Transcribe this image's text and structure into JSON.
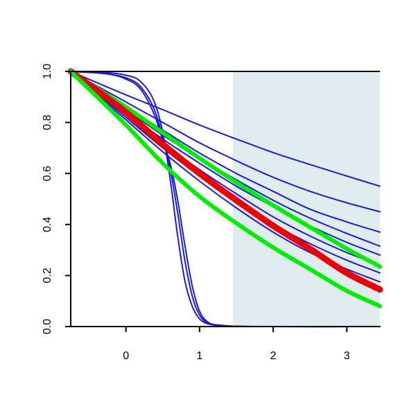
{
  "chart_data": {
    "type": "line",
    "title": "",
    "xlabel": "",
    "ylabel": "",
    "xlim": [
      -0.75,
      3.45
    ],
    "ylim": [
      0,
      1
    ],
    "x_ticks": [
      0,
      1,
      2,
      3
    ],
    "x_tick_labels": [
      "0",
      "1",
      "2",
      "3"
    ],
    "y_ticks": [
      0,
      0.2,
      0.4,
      0.6,
      0.8,
      1
    ],
    "y_tick_labels": [
      "0.0",
      "0.2",
      "0.4",
      "0.6",
      "0.8",
      "1.0"
    ],
    "grid": false,
    "legend": "none",
    "shaded_region": {
      "x_from": 1.45,
      "x_to": 3.45,
      "color": "#e0eced"
    },
    "colors": {
      "blue": "#1a1ad8",
      "green": "#00ee00",
      "red": "#ee0000"
    },
    "series": [
      {
        "color": "#1a1ad8",
        "width": 2,
        "x": [
          -0.75,
          0.0,
          0.5,
          1.0,
          1.5,
          2.0,
          2.5,
          3.0,
          3.45
        ],
        "y": [
          1.0,
          0.908,
          0.85,
          0.79,
          0.735,
          0.682,
          0.635,
          0.59,
          0.55
        ]
      },
      {
        "color": "#1a1ad8",
        "width": 2,
        "x": [
          -0.75,
          0.0,
          0.5,
          1.0,
          1.5,
          2.0,
          2.5,
          3.0,
          3.45
        ],
        "y": [
          1.0,
          0.88,
          0.8,
          0.72,
          0.65,
          0.585,
          0.53,
          0.485,
          0.45
        ]
      },
      {
        "color": "#1a1ad8",
        "width": 2,
        "x": [
          -0.75,
          0.0,
          0.5,
          1.0,
          1.5,
          2.0,
          2.5,
          3.0,
          3.45
        ],
        "y": [
          1.0,
          0.86,
          0.77,
          0.68,
          0.6,
          0.53,
          0.46,
          0.41,
          0.37
        ]
      },
      {
        "color": "#1a1ad8",
        "width": 2,
        "x": [
          -0.75,
          0.0,
          0.5,
          1.0,
          1.5,
          2.0,
          2.5,
          3.0,
          3.45
        ],
        "y": [
          1.0,
          0.85,
          0.75,
          0.66,
          0.575,
          0.495,
          0.425,
          0.365,
          0.315
        ]
      },
      {
        "color": "#1a1ad8",
        "width": 2,
        "x": [
          -0.75,
          0.0,
          0.5,
          1.0,
          1.5,
          2.0,
          2.5,
          3.0,
          3.45
        ],
        "y": [
          1.0,
          0.84,
          0.735,
          0.64,
          0.55,
          0.47,
          0.395,
          0.33,
          0.28
        ]
      },
      {
        "color": "#1a1ad8",
        "width": 2,
        "x": [
          -0.75,
          0.0,
          0.5,
          1.0,
          1.5,
          2.0,
          2.5,
          3.0,
          3.45
        ],
        "y": [
          1.0,
          0.83,
          0.72,
          0.615,
          0.52,
          0.43,
          0.355,
          0.29,
          0.24
        ]
      },
      {
        "color": "#1a1ad8",
        "width": 2,
        "x": [
          -0.75,
          0.0,
          0.5,
          1.0,
          1.5,
          2.0,
          2.5,
          3.0,
          3.45
        ],
        "y": [
          1.0,
          0.82,
          0.7,
          0.59,
          0.49,
          0.4,
          0.325,
          0.26,
          0.21
        ]
      },
      {
        "color": "#1a1ad8",
        "width": 2,
        "x": [
          -0.75,
          0.0,
          0.5,
          1.0,
          1.5,
          2.0,
          2.5,
          3.0,
          3.45
        ],
        "y": [
          1.0,
          0.81,
          0.685,
          0.57,
          0.465,
          0.37,
          0.29,
          0.225,
          0.175
        ]
      },
      {
        "color": "#1a1ad8",
        "width": 2,
        "x": [
          -0.75,
          -0.25,
          0.0,
          0.2,
          0.4,
          0.5,
          0.6,
          0.7,
          0.8,
          0.9,
          1.0,
          1.1,
          1.3,
          1.5,
          2.0,
          3.45
        ],
        "y": [
          1.0,
          0.995,
          0.985,
          0.96,
          0.87,
          0.76,
          0.58,
          0.36,
          0.18,
          0.08,
          0.03,
          0.012,
          0.003,
          0.001,
          0.0,
          0.0
        ]
      },
      {
        "color": "#1a1ad8",
        "width": 2,
        "x": [
          -0.75,
          -0.25,
          0.0,
          0.2,
          0.4,
          0.5,
          0.6,
          0.7,
          0.8,
          0.9,
          1.0,
          1.1,
          1.3,
          1.5,
          2.0,
          3.45
        ],
        "y": [
          1.0,
          0.99,
          0.975,
          0.94,
          0.84,
          0.74,
          0.62,
          0.45,
          0.26,
          0.12,
          0.045,
          0.016,
          0.004,
          0.001,
          0.0,
          0.0
        ]
      },
      {
        "color": "#1a1ad8",
        "width": 2,
        "x": [
          -0.75,
          -0.25,
          0.0,
          0.2,
          0.4,
          0.5,
          0.6,
          0.7,
          0.8,
          0.9,
          1.0,
          1.1,
          1.3,
          1.5,
          2.0,
          3.45
        ],
        "y": [
          1.0,
          0.99,
          0.97,
          0.93,
          0.82,
          0.73,
          0.64,
          0.5,
          0.32,
          0.16,
          0.06,
          0.02,
          0.005,
          0.001,
          0.0,
          0.0
        ]
      },
      {
        "color": "#00ee00",
        "width": 6,
        "x": [
          -0.75,
          0.0,
          0.5,
          1.0,
          1.5,
          2.0,
          2.5,
          3.0,
          3.45
        ],
        "y": [
          1.0,
          0.86,
          0.76,
          0.66,
          0.565,
          0.475,
          0.39,
          0.305,
          0.235
        ]
      },
      {
        "color": "#ee0000",
        "width": 9,
        "x": [
          -0.75,
          0.0,
          0.5,
          1.0,
          1.5,
          2.0,
          2.5,
          3.0,
          3.45
        ],
        "y": [
          1.0,
          0.84,
          0.715,
          0.6,
          0.495,
          0.395,
          0.305,
          0.21,
          0.145
        ]
      },
      {
        "color": "#00ee00",
        "width": 6,
        "x": [
          -0.75,
          0.0,
          0.5,
          1.0,
          1.5,
          2.0,
          2.5,
          3.0,
          3.45
        ],
        "y": [
          1.0,
          0.79,
          0.64,
          0.51,
          0.405,
          0.31,
          0.225,
          0.14,
          0.08
        ]
      }
    ]
  }
}
